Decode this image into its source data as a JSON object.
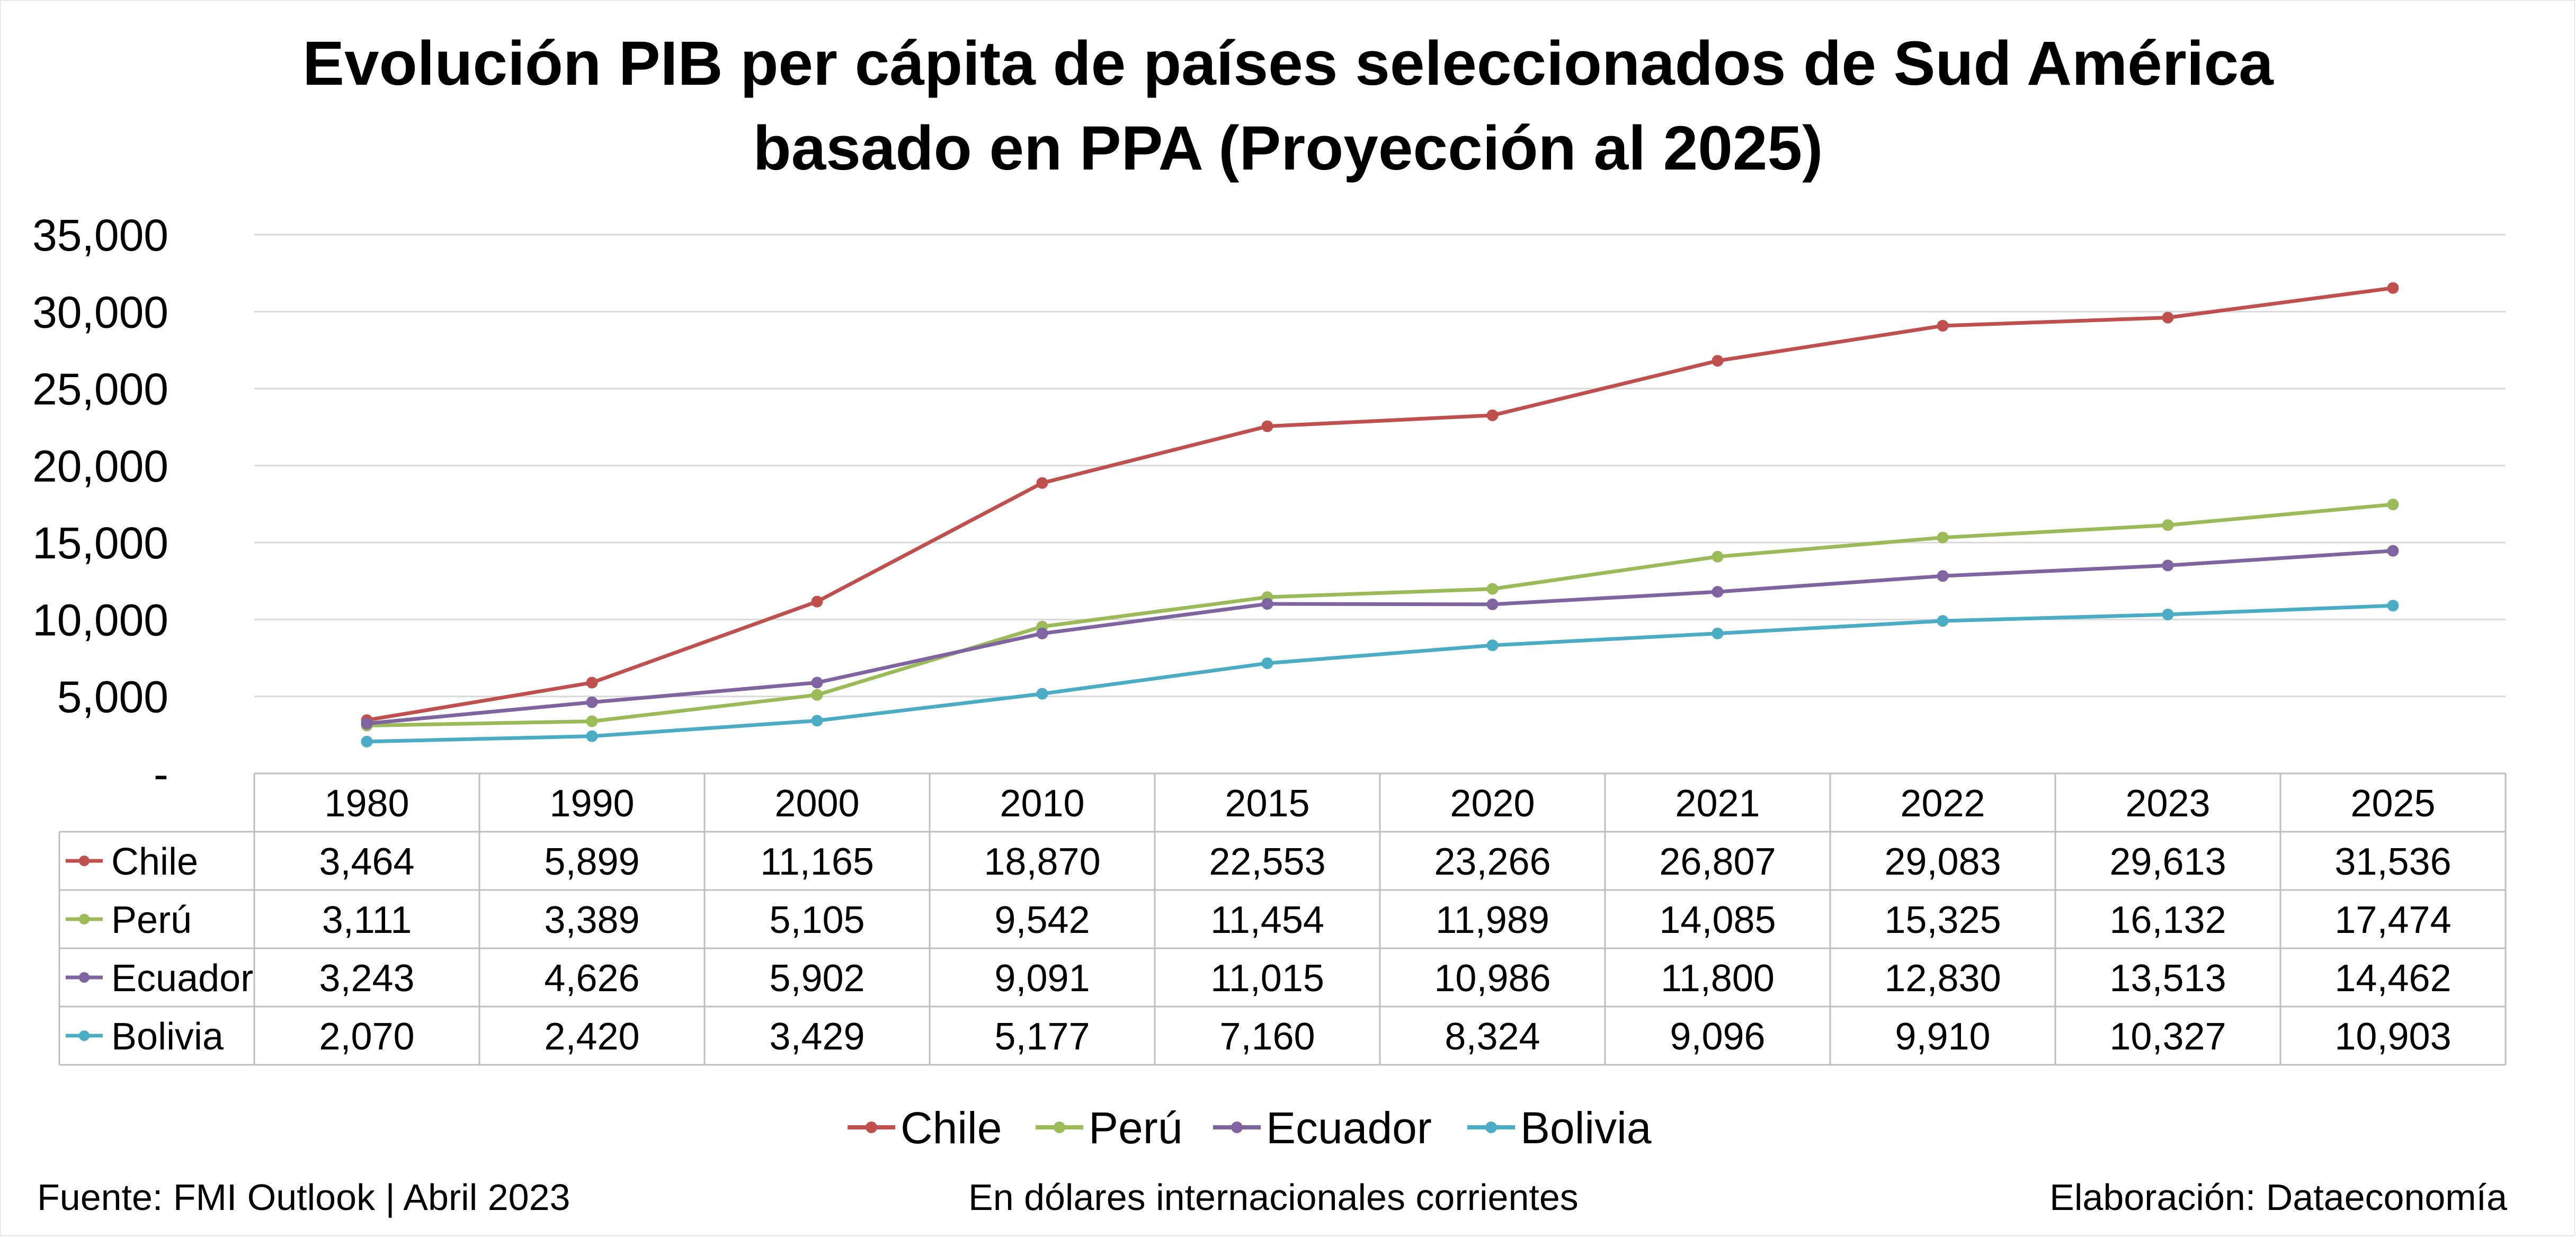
{
  "title": {
    "line1": "Evolución PIB per cápita de países seleccionados de Sud América",
    "line2": "basado en PPA (Proyección al 2025)"
  },
  "footer": {
    "source": "Fuente: FMI Outlook | Abril 2023",
    "units": "En dólares internacionales corrientes",
    "credit": "Elaboración: Dataeconomía"
  },
  "chart_data": {
    "type": "line",
    "categories": [
      "1980",
      "1990",
      "2000",
      "2010",
      "2015",
      "2020",
      "2021",
      "2022",
      "2023",
      "2025"
    ],
    "yticks": [
      "-",
      "5,000",
      "10,000",
      "15,000",
      "20,000",
      "25,000",
      "30,000",
      "35,000"
    ],
    "ylim": [
      0,
      35000
    ],
    "grid": true,
    "legend": "bottom",
    "data_table": true,
    "series": [
      {
        "name": "Chile",
        "color": "#C0504D",
        "values": [
          3464,
          5899,
          11165,
          18870,
          22553,
          23266,
          26807,
          29083,
          29613,
          31536
        ],
        "labels": [
          "3,464",
          "5,899",
          "11,165",
          "18,870",
          "22,553",
          "23,266",
          "26,807",
          "29,083",
          "29,613",
          "31,536"
        ]
      },
      {
        "name": "Perú",
        "color": "#9BBB59",
        "values": [
          3111,
          3389,
          5105,
          9542,
          11454,
          11989,
          14085,
          15325,
          16132,
          17474
        ],
        "labels": [
          "3,111",
          "3,389",
          "5,105",
          "9,542",
          "11,454",
          "11,989",
          "14,085",
          "15,325",
          "16,132",
          "17,474"
        ]
      },
      {
        "name": "Ecuador",
        "color": "#8064A2",
        "values": [
          3243,
          4626,
          5902,
          9091,
          11015,
          10986,
          11800,
          12830,
          13513,
          14462
        ],
        "labels": [
          "3,243",
          "4,626",
          "5,902",
          "9,091",
          "11,015",
          "10,986",
          "11,800",
          "12,830",
          "13,513",
          "14,462"
        ]
      },
      {
        "name": "Bolivia",
        "color": "#4BACC6",
        "values": [
          2070,
          2420,
          3429,
          5177,
          7160,
          8324,
          9096,
          9910,
          10327,
          10903
        ],
        "labels": [
          "2,070",
          "2,420",
          "3,429",
          "5,177",
          "7,160",
          "8,324",
          "9,096",
          "9,910",
          "10,327",
          "10,903"
        ]
      }
    ]
  }
}
